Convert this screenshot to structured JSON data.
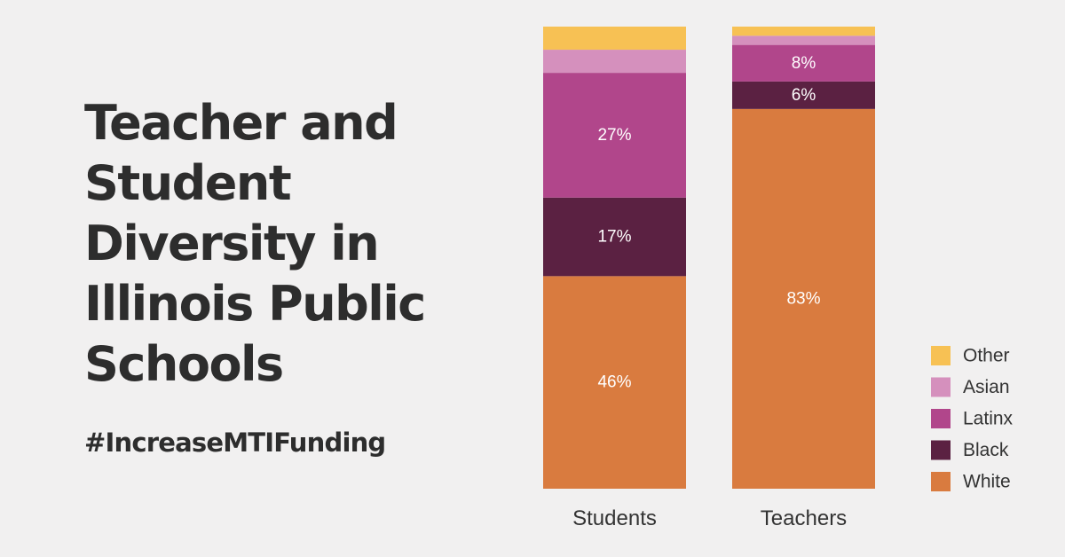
{
  "title_lines": [
    "Teacher and",
    "Student",
    "Diversity in",
    "Illinois Public",
    "Schools"
  ],
  "hashtag": "#IncreaseMTIFunding",
  "chart_data": {
    "type": "bar",
    "stacked": true,
    "categories": [
      "Students",
      "Teachers"
    ],
    "ylim": [
      0,
      100
    ],
    "legend_position": "bottom-right",
    "grid": false,
    "series": [
      {
        "name": "White",
        "color": "#d97b3f",
        "values": [
          46,
          83
        ],
        "labels": [
          "46%",
          "83%"
        ]
      },
      {
        "name": "Black",
        "color": "#5b2142",
        "values": [
          17,
          6
        ],
        "labels": [
          "17%",
          "6%"
        ]
      },
      {
        "name": "Latinx",
        "color": "#b1468b",
        "values": [
          27,
          8
        ],
        "labels": [
          "27%",
          "8%"
        ]
      },
      {
        "name": "Asian",
        "color": "#d590bd",
        "values": [
          5,
          2
        ],
        "labels": [
          "",
          ""
        ]
      },
      {
        "name": "Other",
        "color": "#f7c154",
        "values": [
          5,
          2
        ],
        "labels": [
          "",
          ""
        ]
      }
    ],
    "legend_order": [
      "Other",
      "Asian",
      "Latinx",
      "Black",
      "White"
    ]
  }
}
